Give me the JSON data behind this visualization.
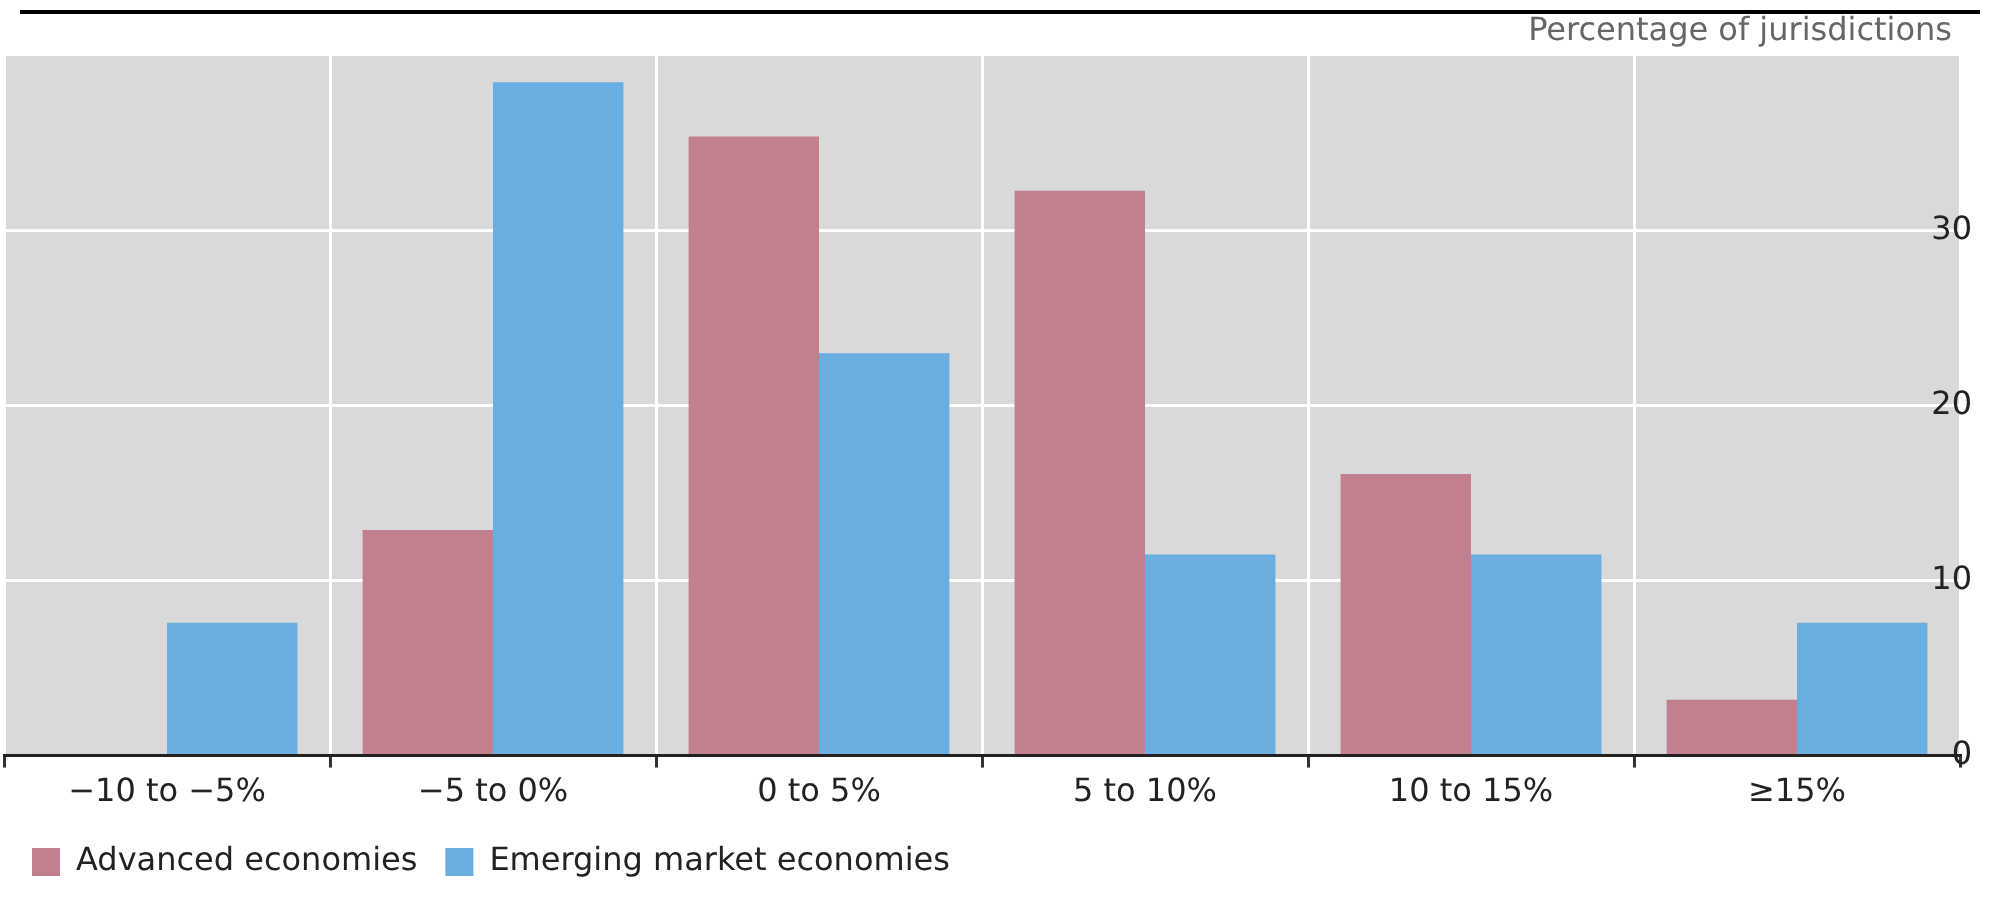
{
  "chart_data": {
    "type": "bar",
    "ylabel": "Percentage of jurisdictions",
    "categories": [
      "−10 to −5%",
      "−5 to 0%",
      "0 to 5%",
      "5 to 10%",
      "10 to 15%",
      "≥15%"
    ],
    "series": [
      {
        "name": "Advanced economies",
        "color": "#c2808f",
        "values": [
          0,
          12.9,
          35.4,
          32.3,
          16.1,
          3.2
        ]
      },
      {
        "name": "Emerging market economies",
        "color": "#6aade0",
        "values": [
          7.6,
          38.5,
          23.0,
          11.5,
          11.5,
          7.6
        ]
      }
    ],
    "ylim": [
      0,
      40
    ],
    "yticks": [
      0,
      10,
      20,
      30
    ],
    "grid": true,
    "legend": "bottom left"
  }
}
